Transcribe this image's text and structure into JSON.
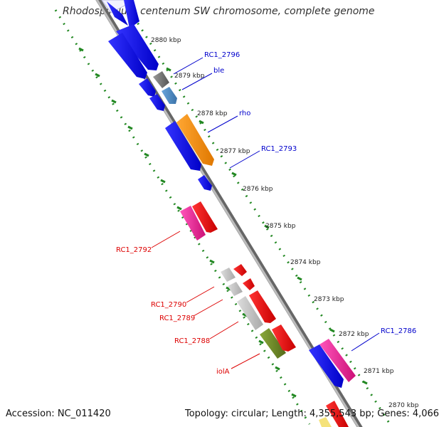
{
  "title": "Rhodospirillum centenum SW chromosome, complete genome",
  "footer": {
    "accession": "Accession: NC_011420",
    "summary": "Topology: circular; Length: 4,355,543 bp; Genes: 4,066"
  },
  "ticks": [
    "2880 kbp",
    "2879 kbp",
    "2878 kbp",
    "2877 kbp",
    "2876 kbp",
    "2875 kbp",
    "2874 kbp",
    "2873 kbp",
    "2872 kbp",
    "2871 kbp",
    "2870 kbp"
  ],
  "gene_labels": {
    "rc1_2796": "RC1_2796",
    "ble": "ble",
    "rho": "rho",
    "rc1_2793": "RC1_2793",
    "rc1_2792": "RC1_2792",
    "rc1_2790": "RC1_2790",
    "rc1_2789": "RC1_2789",
    "rc1_2788": "RC1_2788",
    "iola": "iolA",
    "rc1_2786": "RC1_2786"
  },
  "colors": {
    "forward_label": "#0000cc",
    "reverse_label": "#dd0000",
    "backbone": "#999999",
    "tick_dots": "#228822",
    "cds_blue": "#0000e6",
    "cds_red": "#e60000",
    "pink": "#ee2299",
    "orange": "#ff8c00",
    "olive": "#6b8e23",
    "gray": "#777777",
    "light_gray": "#bbbbbb",
    "steel": "#4682b4"
  }
}
